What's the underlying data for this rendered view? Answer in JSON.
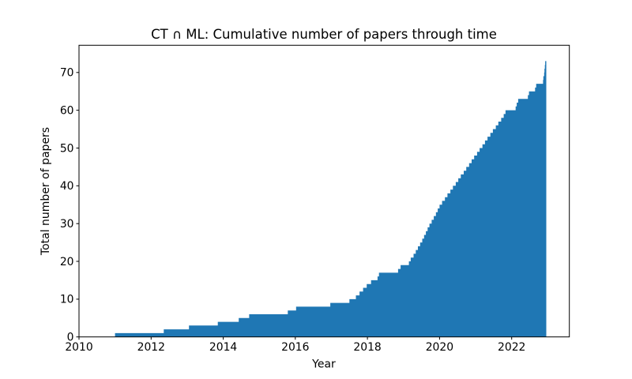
{
  "chart_data": {
    "type": "area",
    "subtype": "cumulative-step",
    "title": "CT ∩ ML: Cumulative number of papers through time",
    "xlabel": "Year",
    "ylabel": "Total number of papers",
    "xlim": [
      2010,
      2023.6
    ],
    "ylim": [
      0,
      77.2
    ],
    "xticks": [
      2010,
      2012,
      2014,
      2016,
      2018,
      2020,
      2022
    ],
    "yticks": [
      0,
      10,
      20,
      30,
      40,
      50,
      60,
      70
    ],
    "grid": false,
    "legend": null,
    "fill_color": "#1f77b4",
    "spine_color": "#000000",
    "background": "#ffffff",
    "final_count": 73,
    "end_year": 2022.96,
    "step_points": [
      [
        2011.0,
        1
      ],
      [
        2012.35,
        2
      ],
      [
        2013.05,
        3
      ],
      [
        2013.85,
        4
      ],
      [
        2014.43,
        5
      ],
      [
        2014.72,
        6
      ],
      [
        2015.79,
        7
      ],
      [
        2016.02,
        8
      ],
      [
        2016.97,
        9
      ],
      [
        2017.5,
        10
      ],
      [
        2017.68,
        11
      ],
      [
        2017.78,
        12
      ],
      [
        2017.88,
        13
      ],
      [
        2017.98,
        14
      ],
      [
        2018.1,
        15
      ],
      [
        2018.28,
        16
      ],
      [
        2018.32,
        17
      ],
      [
        2018.85,
        18
      ],
      [
        2018.92,
        19
      ],
      [
        2019.15,
        20
      ],
      [
        2019.2,
        21
      ],
      [
        2019.28,
        22
      ],
      [
        2019.34,
        23
      ],
      [
        2019.4,
        24
      ],
      [
        2019.46,
        25
      ],
      [
        2019.52,
        26
      ],
      [
        2019.57,
        27
      ],
      [
        2019.62,
        28
      ],
      [
        2019.67,
        29
      ],
      [
        2019.72,
        30
      ],
      [
        2019.78,
        31
      ],
      [
        2019.84,
        32
      ],
      [
        2019.9,
        33
      ],
      [
        2019.95,
        34
      ],
      [
        2020.0,
        35
      ],
      [
        2020.07,
        36
      ],
      [
        2020.15,
        37
      ],
      [
        2020.22,
        38
      ],
      [
        2020.3,
        39
      ],
      [
        2020.37,
        40
      ],
      [
        2020.45,
        41
      ],
      [
        2020.52,
        42
      ],
      [
        2020.59,
        43
      ],
      [
        2020.67,
        44
      ],
      [
        2020.74,
        45
      ],
      [
        2020.82,
        46
      ],
      [
        2020.89,
        47
      ],
      [
        2020.96,
        48
      ],
      [
        2021.04,
        49
      ],
      [
        2021.11,
        50
      ],
      [
        2021.19,
        51
      ],
      [
        2021.26,
        52
      ],
      [
        2021.33,
        53
      ],
      [
        2021.41,
        54
      ],
      [
        2021.48,
        55
      ],
      [
        2021.56,
        56
      ],
      [
        2021.63,
        57
      ],
      [
        2021.71,
        58
      ],
      [
        2021.78,
        59
      ],
      [
        2021.83,
        60
      ],
      [
        2022.11,
        61
      ],
      [
        2022.14,
        62
      ],
      [
        2022.18,
        63
      ],
      [
        2022.45,
        64
      ],
      [
        2022.48,
        65
      ],
      [
        2022.65,
        66
      ],
      [
        2022.68,
        67
      ],
      [
        2022.87,
        68
      ],
      [
        2022.88,
        69
      ],
      [
        2022.9,
        70
      ],
      [
        2022.91,
        71
      ],
      [
        2022.92,
        72
      ],
      [
        2022.93,
        73
      ]
    ]
  }
}
